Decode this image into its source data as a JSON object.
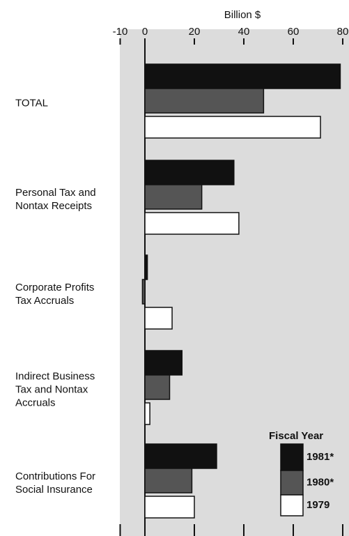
{
  "chart_data": {
    "type": "bar",
    "orientation": "horizontal",
    "x_label": "Billion $",
    "categories": [
      "TOTAL",
      "Personal Tax and Nontax Receipts",
      "Corporate Profits Tax Accruals",
      "Indirect Business Tax and Nontax Accruals",
      "Contributions For Social Insurance"
    ],
    "series": [
      {
        "name": "1981*",
        "color": "#111111",
        "values": [
          79,
          36,
          1,
          15,
          29
        ]
      },
      {
        "name": "1980*",
        "color": "#555555",
        "values": [
          48,
          23,
          -1,
          10,
          19
        ]
      },
      {
        "name": "1979",
        "color": "#ffffff",
        "values": [
          71,
          38,
          11,
          2,
          20
        ]
      }
    ],
    "legend_title": "Fiscal Year",
    "legend_position": "lower right",
    "xlim": [
      -10,
      80
    ],
    "xticks": [
      -10,
      0,
      20,
      40,
      60,
      80
    ]
  }
}
